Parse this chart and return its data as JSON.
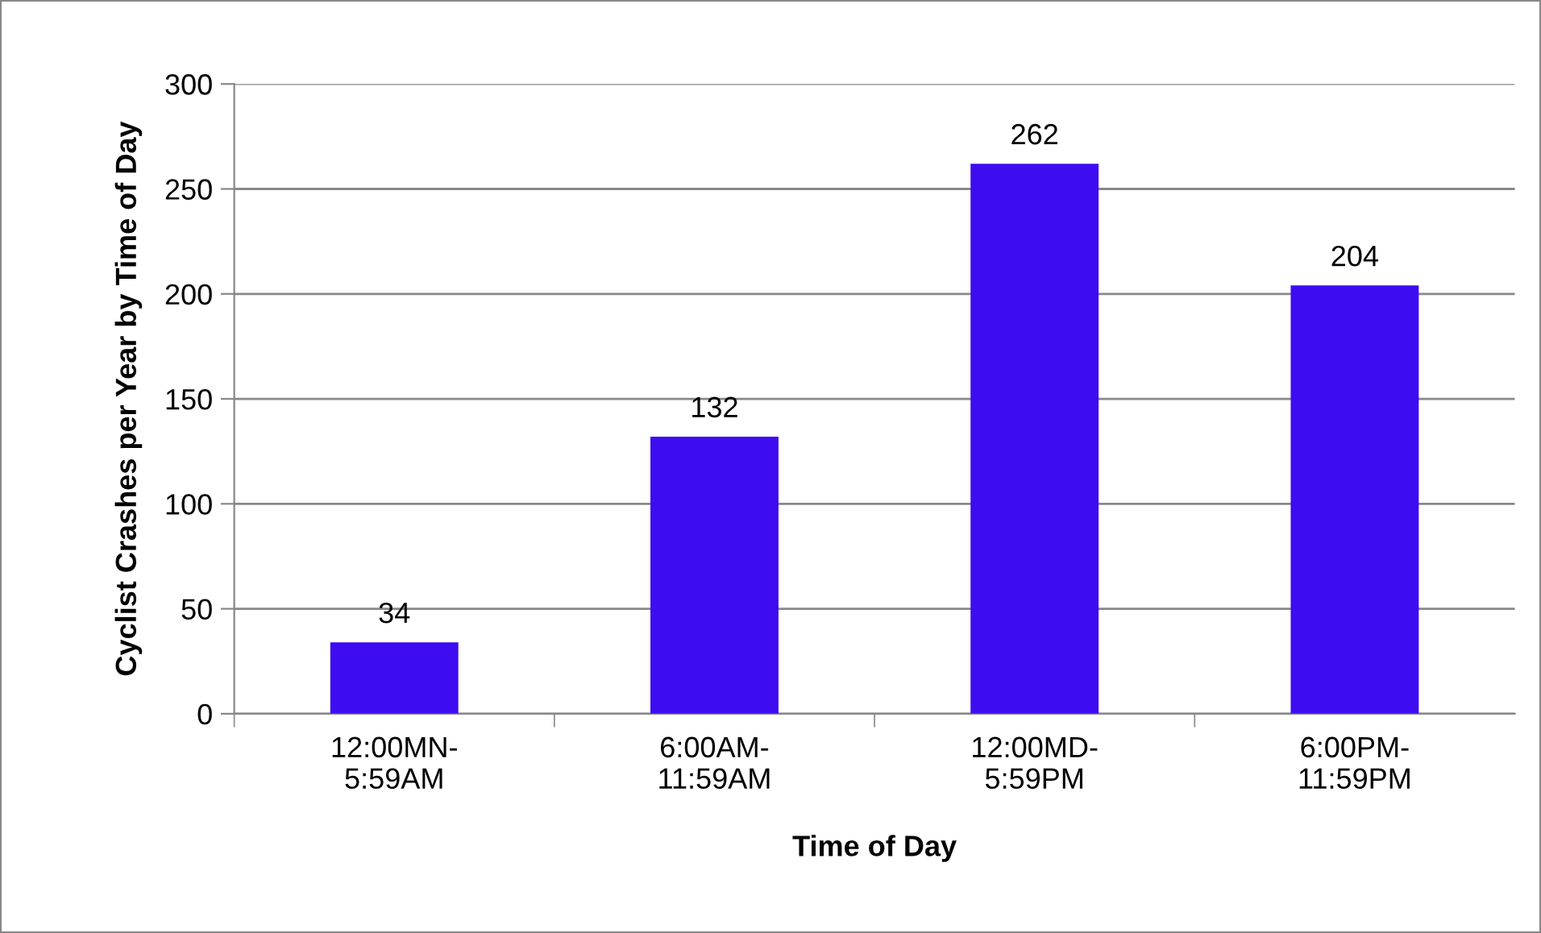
{
  "chart_data": {
    "type": "bar",
    "xlabel": "Time of Day",
    "ylabel": "Cyclist Crashes per Year by Time of Day",
    "categories": [
      "12:00MN-\n5:59AM",
      "6:00AM-\n11:59AM",
      "12:00MD-\n5:59PM",
      "6:00PM-\n11:59PM"
    ],
    "values": [
      34,
      132,
      262,
      204
    ],
    "color": "#3d0cf0",
    "ylim": [
      0,
      300
    ],
    "yticks": [
      0,
      50,
      100,
      150,
      200,
      250,
      300
    ],
    "grid": "y",
    "data_labels": true
  }
}
